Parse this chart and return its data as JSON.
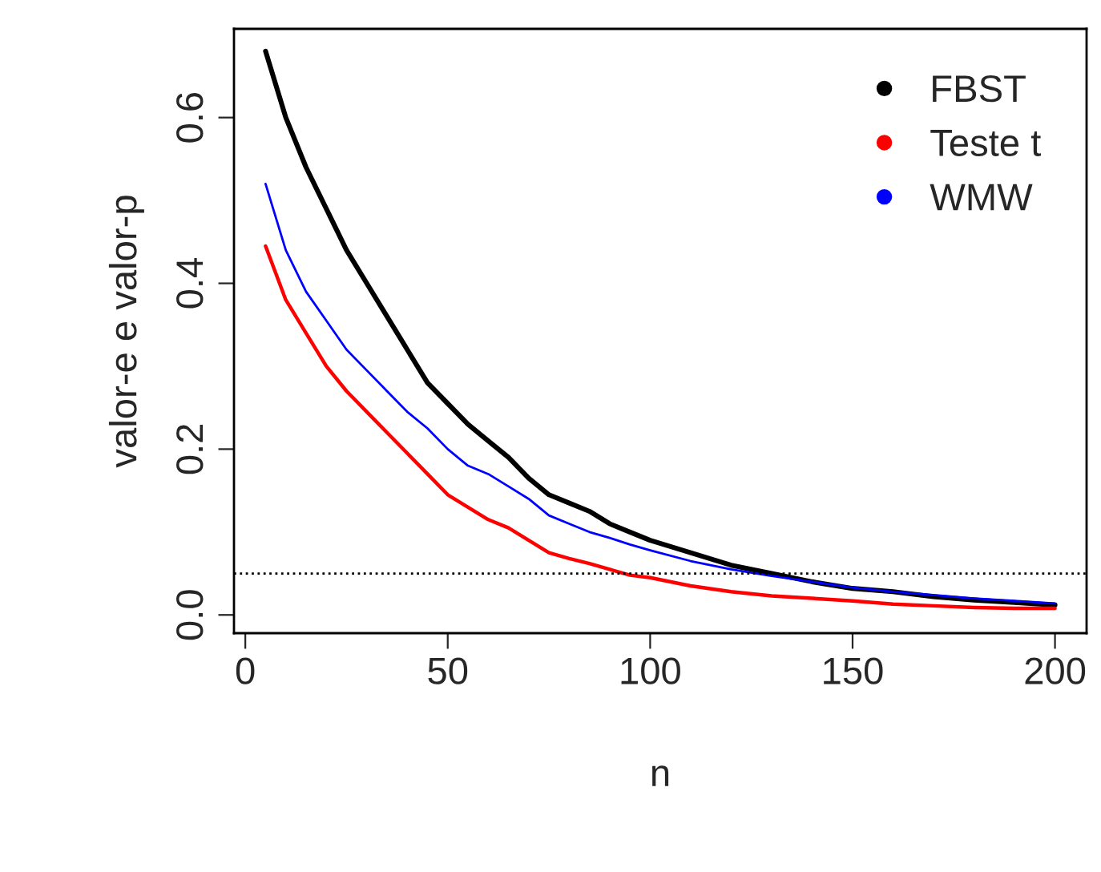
{
  "chart_data": {
    "type": "line",
    "xlabel": "n",
    "ylabel": "valor-e e valor-p",
    "x": [
      5,
      10,
      15,
      20,
      25,
      30,
      35,
      40,
      45,
      50,
      55,
      60,
      65,
      70,
      75,
      80,
      85,
      90,
      95,
      100,
      110,
      120,
      130,
      140,
      150,
      160,
      170,
      180,
      190,
      200
    ],
    "series": [
      {
        "name": "FBST",
        "color": "#000000",
        "values": [
          0.68,
          0.6,
          0.54,
          0.49,
          0.44,
          0.4,
          0.36,
          0.32,
          0.28,
          0.255,
          0.23,
          0.21,
          0.19,
          0.165,
          0.145,
          0.135,
          0.125,
          0.11,
          0.1,
          0.09,
          0.075,
          0.06,
          0.05,
          0.04,
          0.032,
          0.028,
          0.022,
          0.018,
          0.015,
          0.012
        ]
      },
      {
        "name": "Teste t",
        "color": "#ff0000",
        "values": [
          0.445,
          0.38,
          0.34,
          0.3,
          0.27,
          0.245,
          0.22,
          0.195,
          0.17,
          0.145,
          0.13,
          0.115,
          0.105,
          0.09,
          0.075,
          0.068,
          0.062,
          0.055,
          0.048,
          0.045,
          0.035,
          0.028,
          0.023,
          0.02,
          0.017,
          0.013,
          0.011,
          0.009,
          0.008,
          0.008
        ]
      },
      {
        "name": "WMW",
        "color": "#0000ff",
        "values": [
          0.52,
          0.44,
          0.39,
          0.355,
          0.32,
          0.295,
          0.27,
          0.245,
          0.225,
          0.2,
          0.18,
          0.17,
          0.155,
          0.14,
          0.12,
          0.11,
          0.1,
          0.093,
          0.085,
          0.078,
          0.065,
          0.055,
          0.047,
          0.04,
          0.033,
          0.028,
          0.024,
          0.02,
          0.017,
          0.014
        ]
      }
    ],
    "xlim": [
      -2.8,
      207.8
    ],
    "ylim": [
      -0.022,
      0.707
    ],
    "xticks": [
      0,
      50,
      100,
      150,
      200
    ],
    "yticks": [
      {
        "value": 0,
        "label": "0.0"
      },
      {
        "value": 0.2,
        "label": "0.2"
      },
      {
        "value": 0.4,
        "label": "0.4"
      },
      {
        "value": 0.6,
        "label": "0.6"
      }
    ],
    "ref_lines": [
      {
        "axis": "y",
        "value": 0.05,
        "color": "#000000",
        "line_style": "dotted"
      }
    ],
    "legend": "top right",
    "grid": false
  }
}
